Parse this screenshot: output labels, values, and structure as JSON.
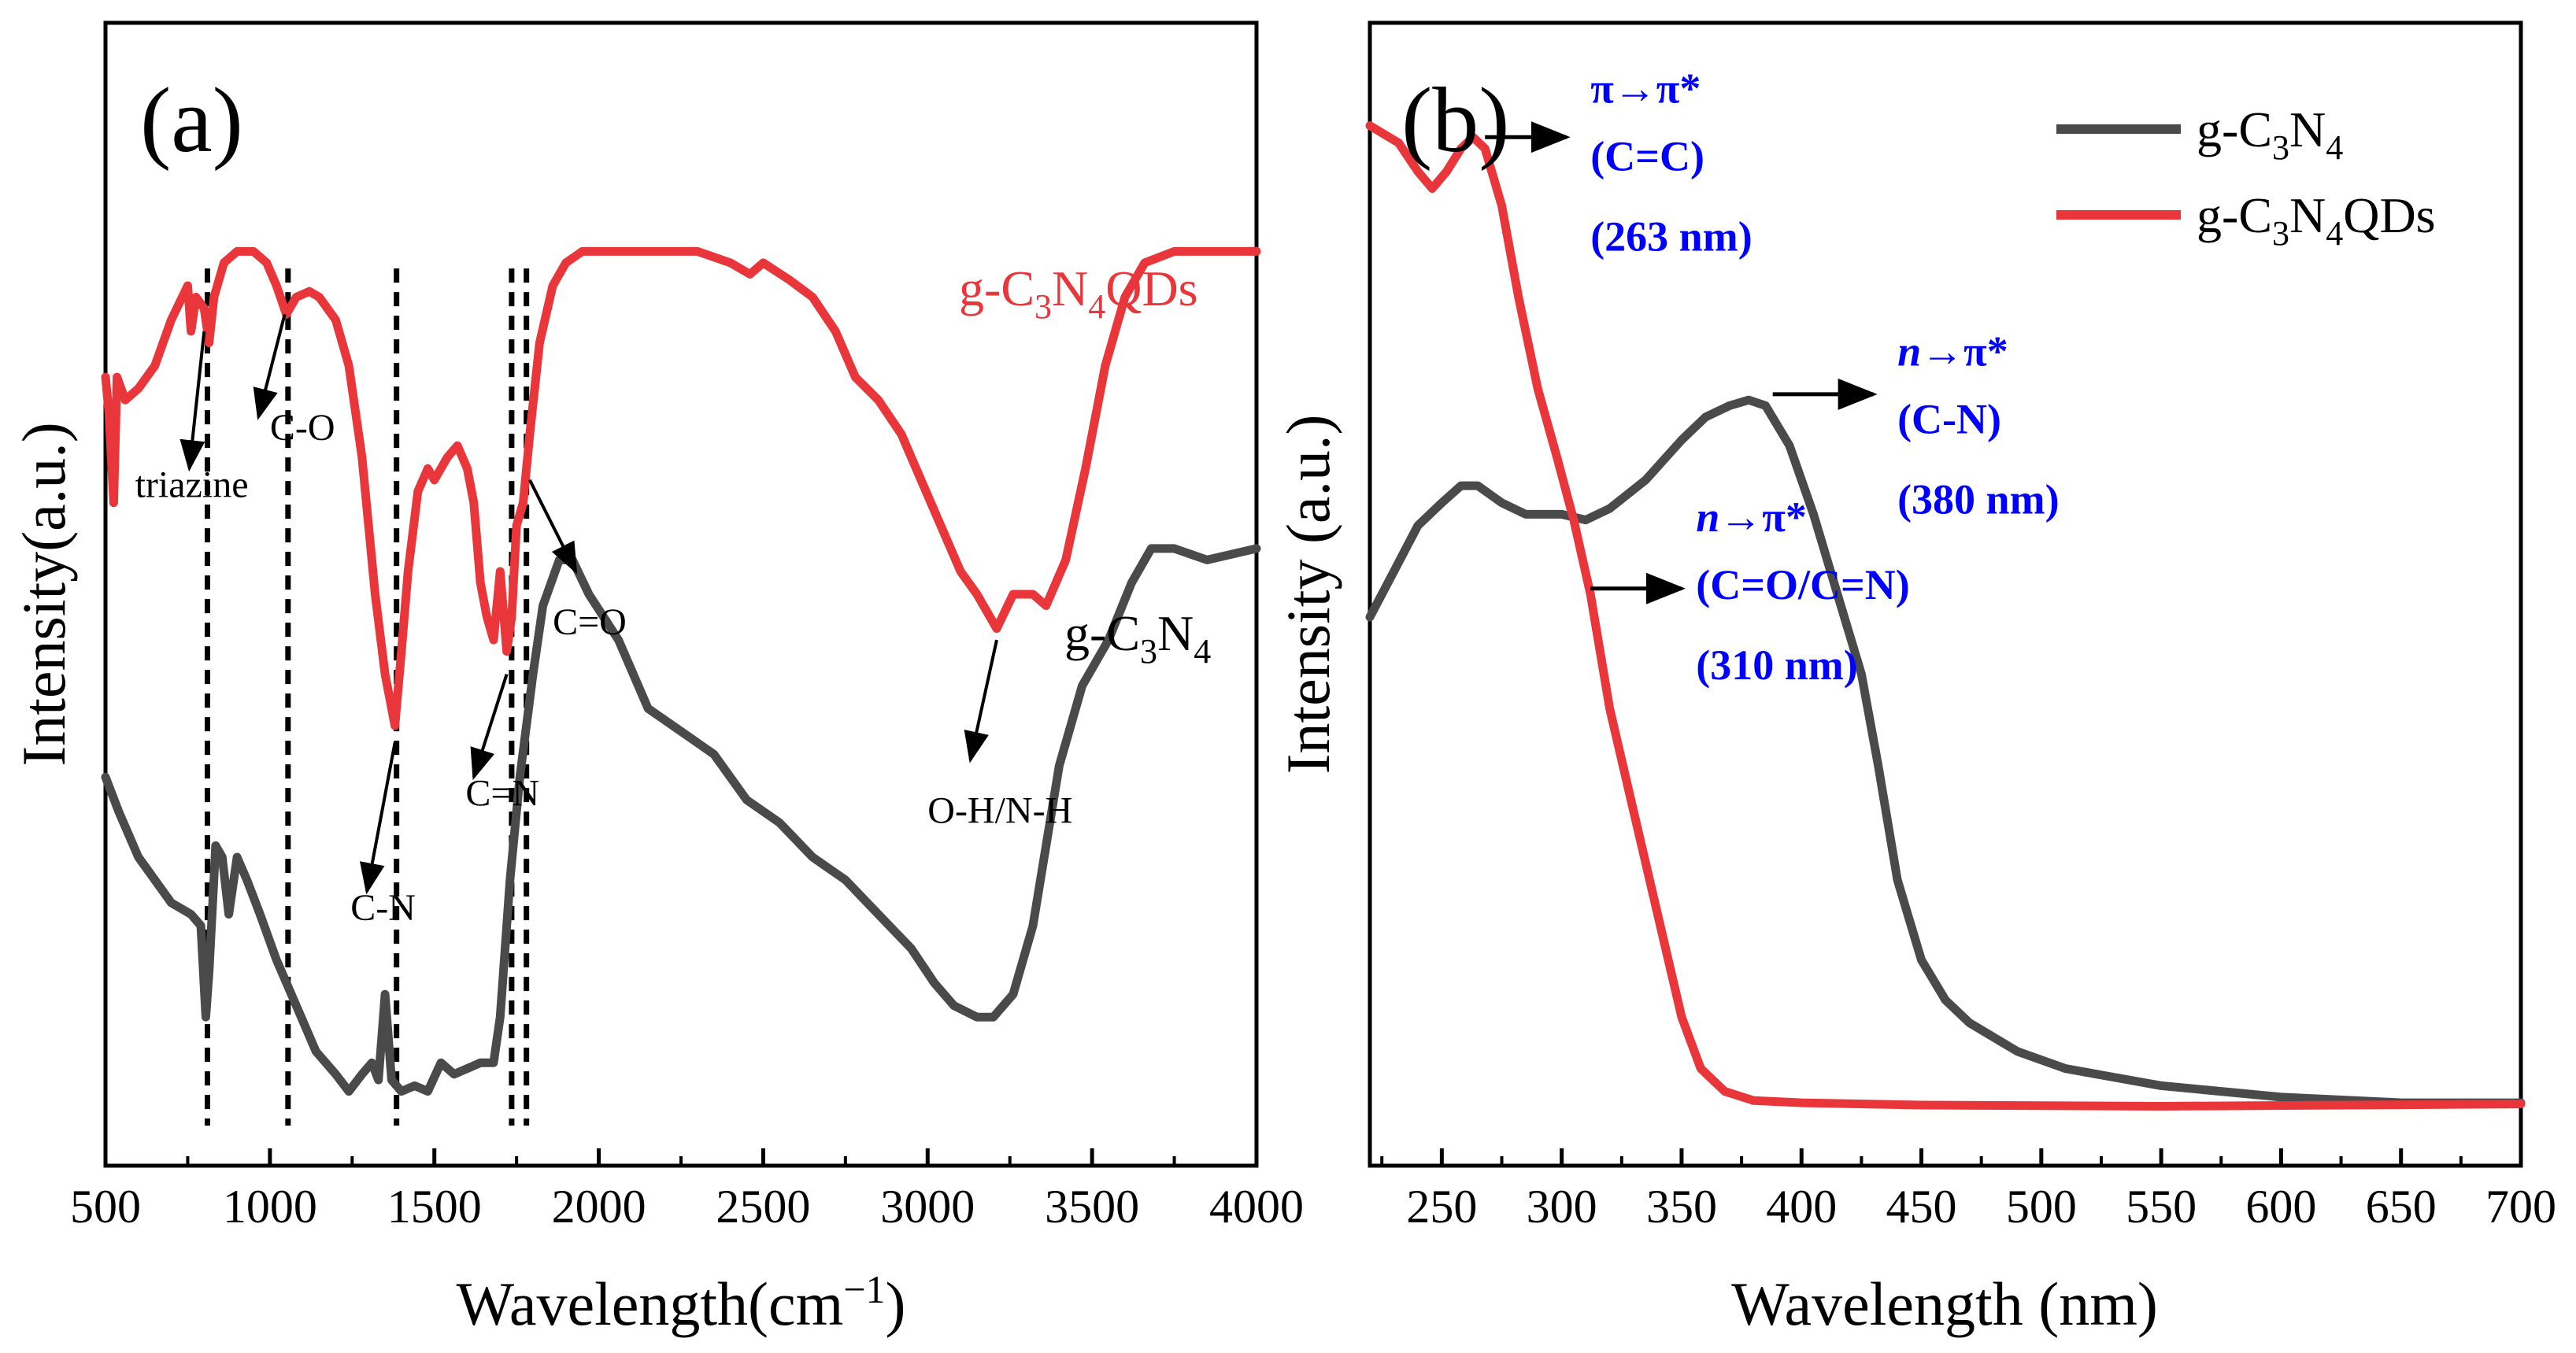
{
  "colors": {
    "gcn": "#4a4a4a",
    "qds": "#e8363a",
    "annot": "#0000ff",
    "axis": "#000000"
  },
  "chart_data": [
    {
      "id": "a",
      "type": "line",
      "panel_label": "(a)",
      "xlabel": "Wavelength(cm",
      "xlabel_sup": "−1",
      "xlabel_close": ")",
      "ylabel": "Intensity(a.u.)",
      "xlim": [
        500,
        4000
      ],
      "ylim": [
        0,
        1
      ],
      "xticks": [
        500,
        1000,
        1500,
        2000,
        2500,
        3000,
        3500,
        4000
      ],
      "series": [
        {
          "name": "g-C3N4QDs",
          "color": "#e8363a",
          "label": {
            "a": "g-C",
            "s1": "3",
            "b": "N",
            "s2": "4",
            "c": "QDs"
          },
          "points": [
            [
              500,
              0.69
            ],
            [
              510,
              0.66
            ],
            [
              525,
              0.58
            ],
            [
              535,
              0.69
            ],
            [
              560,
              0.67
            ],
            [
              600,
              0.68
            ],
            [
              650,
              0.7
            ],
            [
              700,
              0.74
            ],
            [
              750,
              0.77
            ],
            [
              760,
              0.73
            ],
            [
              775,
              0.76
            ],
            [
              800,
              0.75
            ],
            [
              815,
              0.72
            ],
            [
              830,
              0.76
            ],
            [
              860,
              0.79
            ],
            [
              900,
              0.8
            ],
            [
              950,
              0.8
            ],
            [
              990,
              0.79
            ],
            [
              1020,
              0.77
            ],
            [
              1050,
              0.745
            ],
            [
              1080,
              0.76
            ],
            [
              1120,
              0.765
            ],
            [
              1150,
              0.76
            ],
            [
              1200,
              0.74
            ],
            [
              1240,
              0.7
            ],
            [
              1280,
              0.62
            ],
            [
              1320,
              0.5
            ],
            [
              1350,
              0.43
            ],
            [
              1380,
              0.385
            ],
            [
              1400,
              0.45
            ],
            [
              1420,
              0.52
            ],
            [
              1450,
              0.59
            ],
            [
              1480,
              0.61
            ],
            [
              1500,
              0.6
            ],
            [
              1540,
              0.62
            ],
            [
              1570,
              0.63
            ],
            [
              1600,
              0.61
            ],
            [
              1620,
              0.58
            ],
            [
              1640,
              0.51
            ],
            [
              1660,
              0.48
            ],
            [
              1680,
              0.46
            ],
            [
              1700,
              0.52
            ],
            [
              1720,
              0.45
            ],
            [
              1735,
              0.48
            ],
            [
              1750,
              0.56
            ],
            [
              1770,
              0.58
            ],
            [
              1790,
              0.64
            ],
            [
              1820,
              0.72
            ],
            [
              1860,
              0.77
            ],
            [
              1900,
              0.79
            ],
            [
              1950,
              0.8
            ],
            [
              2100,
              0.8
            ],
            [
              2300,
              0.8
            ],
            [
              2400,
              0.79
            ],
            [
              2460,
              0.78
            ],
            [
              2500,
              0.79
            ],
            [
              2580,
              0.775
            ],
            [
              2650,
              0.76
            ],
            [
              2720,
              0.73
            ],
            [
              2780,
              0.69
            ],
            [
              2850,
              0.67
            ],
            [
              2920,
              0.64
            ],
            [
              2980,
              0.6
            ],
            [
              3040,
              0.56
            ],
            [
              3100,
              0.52
            ],
            [
              3150,
              0.5
            ],
            [
              3210,
              0.47
            ],
            [
              3260,
              0.5
            ],
            [
              3320,
              0.5
            ],
            [
              3360,
              0.49
            ],
            [
              3420,
              0.53
            ],
            [
              3480,
              0.61
            ],
            [
              3540,
              0.7
            ],
            [
              3600,
              0.76
            ],
            [
              3660,
              0.79
            ],
            [
              3750,
              0.8
            ],
            [
              3880,
              0.8
            ],
            [
              4000,
              0.8
            ]
          ]
        },
        {
          "name": "g-C3N4",
          "color": "#4a4a4a",
          "label": {
            "a": "g-C",
            "s1": "3",
            "b": "N",
            "s2": "4",
            "c": ""
          },
          "points": [
            [
              500,
              0.34
            ],
            [
              540,
              0.31
            ],
            [
              600,
              0.27
            ],
            [
              650,
              0.25
            ],
            [
              700,
              0.23
            ],
            [
              760,
              0.22
            ],
            [
              790,
              0.21
            ],
            [
              805,
              0.13
            ],
            [
              815,
              0.17
            ],
            [
              835,
              0.28
            ],
            [
              855,
              0.27
            ],
            [
              875,
              0.22
            ],
            [
              900,
              0.27
            ],
            [
              930,
              0.25
            ],
            [
              970,
              0.22
            ],
            [
              1020,
              0.18
            ],
            [
              1080,
              0.14
            ],
            [
              1140,
              0.1
            ],
            [
              1200,
              0.08
            ],
            [
              1240,
              0.065
            ],
            [
              1280,
              0.08
            ],
            [
              1310,
              0.09
            ],
            [
              1330,
              0.075
            ],
            [
              1350,
              0.15
            ],
            [
              1370,
              0.075
            ],
            [
              1400,
              0.065
            ],
            [
              1440,
              0.07
            ],
            [
              1480,
              0.065
            ],
            [
              1520,
              0.09
            ],
            [
              1560,
              0.08
            ],
            [
              1600,
              0.085
            ],
            [
              1640,
              0.09
            ],
            [
              1680,
              0.09
            ],
            [
              1700,
              0.13
            ],
            [
              1730,
              0.25
            ],
            [
              1760,
              0.34
            ],
            [
              1800,
              0.43
            ],
            [
              1830,
              0.49
            ],
            [
              1880,
              0.53
            ],
            [
              1920,
              0.53
            ],
            [
              1970,
              0.5
            ],
            [
              2060,
              0.46
            ],
            [
              2150,
              0.4
            ],
            [
              2250,
              0.38
            ],
            [
              2350,
              0.36
            ],
            [
              2450,
              0.32
            ],
            [
              2550,
              0.3
            ],
            [
              2650,
              0.27
            ],
            [
              2750,
              0.25
            ],
            [
              2850,
              0.22
            ],
            [
              2950,
              0.19
            ],
            [
              3020,
              0.16
            ],
            [
              3080,
              0.14
            ],
            [
              3150,
              0.13
            ],
            [
              3200,
              0.13
            ],
            [
              3260,
              0.15
            ],
            [
              3320,
              0.21
            ],
            [
              3400,
              0.35
            ],
            [
              3470,
              0.42
            ],
            [
              3550,
              0.46
            ],
            [
              3620,
              0.51
            ],
            [
              3680,
              0.54
            ],
            [
              3750,
              0.54
            ],
            [
              3850,
              0.53
            ],
            [
              4000,
              0.54
            ]
          ]
        }
      ],
      "dashed_lines_x": [
        810,
        1055,
        1385,
        1735,
        1780
      ],
      "annotations": [
        {
          "text": "triazine",
          "x": 590,
          "y": 0.585,
          "ax": 800,
          "ay": 0.73,
          "bx": 755,
          "by": 0.61
        },
        {
          "text": "C-O",
          "x": 1000,
          "y": 0.635,
          "ax": 1045,
          "ay": 0.745,
          "bx": 965,
          "by": 0.655
        },
        {
          "text": "C-N",
          "x": 1245,
          "y": 0.215,
          "ax": 1380,
          "ay": 0.37,
          "bx": 1295,
          "by": 0.24
        },
        {
          "text": "C=N",
          "x": 1595,
          "y": 0.315,
          "ax": 1720,
          "ay": 0.43,
          "bx": 1620,
          "by": 0.34
        },
        {
          "text": "C=O",
          "x": 1860,
          "y": 0.465,
          "ax": 1790,
          "ay": 0.6,
          "bx": 1930,
          "by": 0.52
        },
        {
          "text": "O-H/N-H",
          "x": 3000,
          "y": 0.3,
          "ax": 3210,
          "ay": 0.46,
          "bx": 3130,
          "by": 0.355
        }
      ]
    },
    {
      "id": "b",
      "type": "line",
      "panel_label": "(b)",
      "xlabel": "Wavelength (nm)",
      "ylabel": "Intensity (a.u.)",
      "xlim": [
        220,
        700
      ],
      "ylim": [
        0,
        1
      ],
      "xticks": [
        250,
        300,
        350,
        400,
        450,
        500,
        550,
        600,
        650,
        700
      ],
      "legend_position": "top-right",
      "series": [
        {
          "name": "g-C3N4",
          "color": "#4a4a4a",
          "label": {
            "a": "g-C",
            "s1": "3",
            "b": "N",
            "s2": "4",
            "c": ""
          },
          "points": [
            [
              220,
              0.48
            ],
            [
              230,
              0.52
            ],
            [
              240,
              0.56
            ],
            [
              250,
              0.58
            ],
            [
              258,
              0.595
            ],
            [
              265,
              0.595
            ],
            [
              275,
              0.58
            ],
            [
              285,
              0.57
            ],
            [
              300,
              0.57
            ],
            [
              310,
              0.565
            ],
            [
              320,
              0.575
            ],
            [
              335,
              0.6
            ],
            [
              350,
              0.635
            ],
            [
              360,
              0.655
            ],
            [
              370,
              0.665
            ],
            [
              378,
              0.67
            ],
            [
              385,
              0.665
            ],
            [
              395,
              0.63
            ],
            [
              405,
              0.57
            ],
            [
              415,
              0.5
            ],
            [
              425,
              0.43
            ],
            [
              432,
              0.35
            ],
            [
              440,
              0.25
            ],
            [
              450,
              0.18
            ],
            [
              460,
              0.145
            ],
            [
              470,
              0.125
            ],
            [
              490,
              0.1
            ],
            [
              510,
              0.085
            ],
            [
              550,
              0.07
            ],
            [
              600,
              0.06
            ],
            [
              650,
              0.055
            ],
            [
              700,
              0.055
            ]
          ]
        },
        {
          "name": "g-C3N4QDs",
          "color": "#e8363a",
          "label": {
            "a": "g-C",
            "s1": "3",
            "b": "N",
            "s2": "4",
            "c": "QDs"
          },
          "points": [
            [
              220,
              0.91
            ],
            [
              232,
              0.895
            ],
            [
              240,
              0.87
            ],
            [
              246,
              0.855
            ],
            [
              252,
              0.87
            ],
            [
              258,
              0.89
            ],
            [
              263,
              0.9
            ],
            [
              268,
              0.89
            ],
            [
              275,
              0.84
            ],
            [
              282,
              0.76
            ],
            [
              290,
              0.68
            ],
            [
              298,
              0.62
            ],
            [
              305,
              0.565
            ],
            [
              312,
              0.5
            ],
            [
              320,
              0.4
            ],
            [
              330,
              0.31
            ],
            [
              340,
              0.22
            ],
            [
              350,
              0.13
            ],
            [
              358,
              0.085
            ],
            [
              368,
              0.065
            ],
            [
              380,
              0.057
            ],
            [
              400,
              0.055
            ],
            [
              450,
              0.053
            ],
            [
              550,
              0.052
            ],
            [
              700,
              0.054
            ]
          ]
        }
      ],
      "annotations": [
        {
          "type": "pi",
          "line1": "π→π*",
          "line2": "(C=C)",
          "line3": "(263 nm)",
          "arrow_from": [
            268,
            0.9
          ],
          "arrow_to": [
            302,
            0.9
          ],
          "text_x": 312,
          "text_y": 0.93
        },
        {
          "type": "n",
          "n": "n",
          "rest": "→π*",
          "line2": "(C-N)",
          "line3": "(380 nm)",
          "arrow_from": [
            388,
            0.675
          ],
          "arrow_to": [
            430,
            0.675
          ],
          "text_x": 440,
          "text_y": 0.7
        },
        {
          "type": "n",
          "n": "n",
          "rest": "→π*",
          "line2": "(C=O/C=N)",
          "line3": "(310 nm)",
          "arrow_from": [
            312,
            0.505
          ],
          "arrow_to": [
            350,
            0.505
          ],
          "text_x": 356,
          "text_y": 0.555
        }
      ]
    }
  ]
}
